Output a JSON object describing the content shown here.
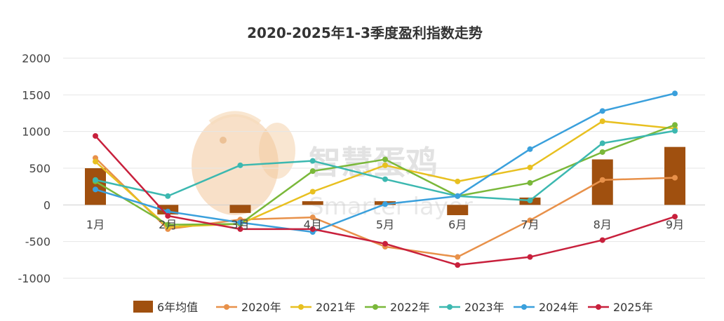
{
  "chart_data": {
    "type": "bar+line",
    "title": "2020-2025年1-3季度盈利指数走势",
    "categories": [
      "1月",
      "2月",
      "3月",
      "4月",
      "5月",
      "6月",
      "7月",
      "8月",
      "9月"
    ],
    "ylim": [
      -1000,
      2000
    ],
    "yticks": [
      2000,
      1500,
      1000,
      500,
      0,
      -500,
      -1000
    ],
    "grid": true,
    "legend_position": "bottom",
    "bars": {
      "name": "6年均值",
      "color": "#a0500f",
      "values": [
        500,
        -130,
        -110,
        50,
        50,
        -140,
        100,
        620,
        790
      ]
    },
    "series": [
      {
        "name": "2020年",
        "color": "#e8914a",
        "values": [
          640,
          -330,
          -200,
          -170,
          -570,
          -710,
          -210,
          340,
          370
        ]
      },
      {
        "name": "2021年",
        "color": "#e8c020",
        "values": [
          590,
          -300,
          -260,
          180,
          540,
          320,
          510,
          1140,
          1040
        ]
      },
      {
        "name": "2022年",
        "color": "#7ab83a",
        "values": [
          320,
          -270,
          -260,
          460,
          620,
          120,
          300,
          720,
          1090
        ]
      },
      {
        "name": "2023年",
        "color": "#3cb8b0",
        "values": [
          340,
          120,
          540,
          600,
          350,
          120,
          60,
          840,
          1010
        ]
      },
      {
        "name": "2024年",
        "color": "#3aa0dc",
        "values": [
          210,
          -90,
          -240,
          -370,
          10,
          120,
          760,
          1280,
          1520
        ]
      },
      {
        "name": "2025年",
        "color": "#c8203c",
        "values": [
          940,
          -150,
          -330,
          -330,
          -530,
          -820,
          -710,
          -480,
          -160
        ]
      }
    ]
  },
  "watermark": {
    "text": "智慧蛋鸡",
    "subtext": "Smarter layer",
    "logo_color": "#f2c79a"
  }
}
